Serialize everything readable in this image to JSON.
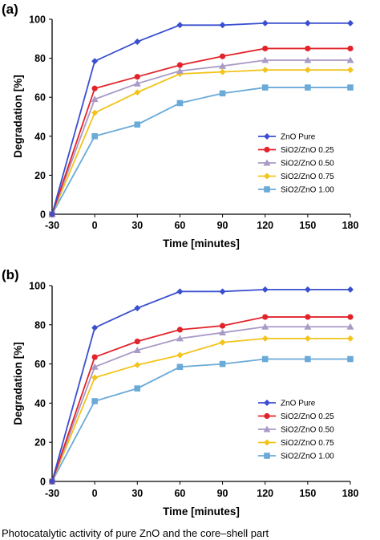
{
  "caption": "Photocatalytic activity of pure ZnO and the core–shell part",
  "colors": {
    "ZnO Pure": "#3a4fd0",
    "SiO2/ZnO 0.25": "#e3232a",
    "SiO2/ZnO 0.50": "#a99ac6",
    "SiO2/ZnO 0.75": "#f2c41b",
    "SiO2/ZnO 1.00": "#6aaad8"
  },
  "chart_data": [
    {
      "panel": "(a)",
      "type": "line",
      "xlabel": "Time [minutes]",
      "ylabel": "Degradation [%]",
      "x": [
        -30,
        0,
        30,
        60,
        90,
        120,
        150,
        180
      ],
      "x_ticks": [
        "-30",
        "0",
        "30",
        "60",
        "90",
        "120",
        "150",
        "180"
      ],
      "ylim": [
        0,
        100
      ],
      "y_ticks": [
        "0",
        "20",
        "40",
        "60",
        "80",
        "100"
      ],
      "legend_position": "bottom-right",
      "series": [
        {
          "name": "ZnO Pure",
          "marker": "diamond",
          "values": [
            0,
            78.5,
            88.5,
            97,
            97,
            98,
            98,
            98
          ]
        },
        {
          "name": "SiO2/ZnO 0.25",
          "marker": "circle",
          "values": [
            0,
            64.5,
            70.5,
            76.5,
            81,
            85,
            85,
            85
          ]
        },
        {
          "name": "SiO2/ZnO 0.50",
          "marker": "triangle",
          "values": [
            0,
            59,
            67,
            73.5,
            76,
            79,
            79,
            79
          ]
        },
        {
          "name": "SiO2/ZnO 0.75",
          "marker": "diamond",
          "values": [
            0,
            52,
            62.5,
            72,
            73,
            74,
            74,
            74
          ]
        },
        {
          "name": "SiO2/ZnO 1.00",
          "marker": "square",
          "values": [
            0,
            40,
            46,
            57,
            62,
            65,
            65,
            65
          ]
        }
      ]
    },
    {
      "panel": "(b)",
      "type": "line",
      "xlabel": "Time [minutes]",
      "ylabel": "Degradation [%]",
      "x": [
        -30,
        0,
        30,
        60,
        90,
        120,
        150,
        180
      ],
      "x_ticks": [
        "-30",
        "0",
        "30",
        "60",
        "90",
        "120",
        "150",
        "180"
      ],
      "ylim": [
        0,
        100
      ],
      "y_ticks": [
        "0",
        "20",
        "40",
        "60",
        "80",
        "100"
      ],
      "legend_position": "bottom-right",
      "series": [
        {
          "name": "ZnO Pure",
          "marker": "diamond",
          "values": [
            0,
            78.5,
            88.5,
            97,
            97,
            98,
            98,
            98
          ]
        },
        {
          "name": "SiO2/ZnO 0.25",
          "marker": "circle",
          "values": [
            0,
            63.5,
            71.5,
            77.5,
            79.5,
            84,
            84,
            84
          ]
        },
        {
          "name": "SiO2/ZnO 0.50",
          "marker": "triangle",
          "values": [
            0,
            58.5,
            67,
            73,
            76,
            79,
            79,
            79
          ]
        },
        {
          "name": "SiO2/ZnO 0.75",
          "marker": "diamond",
          "values": [
            0,
            53,
            59.5,
            64.5,
            71,
            73,
            73,
            73
          ]
        },
        {
          "name": "SiO2/ZnO 1.00",
          "marker": "square",
          "values": [
            0,
            41,
            47.5,
            58.5,
            60,
            62.5,
            62.5,
            62.5
          ]
        }
      ]
    }
  ]
}
